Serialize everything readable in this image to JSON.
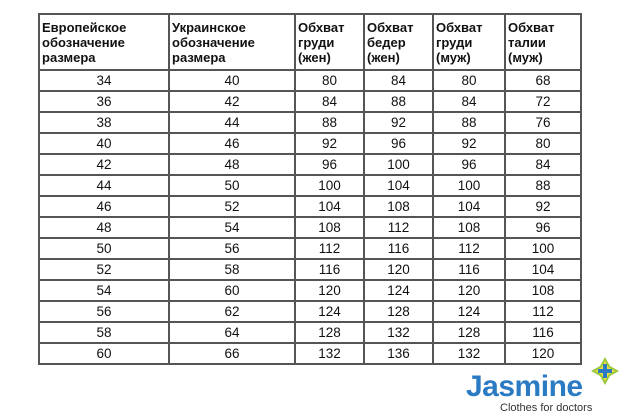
{
  "table": {
    "headers": [
      "Европейское обозначение размера",
      "Украинское обозначение размера",
      "Обхват груди (жен)",
      "Обхват бедер (жен)",
      "Обхват груди (муж)",
      "Обхват талии (муж)"
    ],
    "rows": [
      [
        "34",
        "40",
        "80",
        "84",
        "80",
        "68"
      ],
      [
        "36",
        "42",
        "84",
        "88",
        "84",
        "72"
      ],
      [
        "38",
        "44",
        "88",
        "92",
        "88",
        "76"
      ],
      [
        "40",
        "46",
        "92",
        "96",
        "92",
        "80"
      ],
      [
        "42",
        "48",
        "96",
        "100",
        "96",
        "84"
      ],
      [
        "44",
        "50",
        "100",
        "104",
        "100",
        "88"
      ],
      [
        "46",
        "52",
        "104",
        "108",
        "104",
        "92"
      ],
      [
        "48",
        "54",
        "108",
        "112",
        "108",
        "96"
      ],
      [
        "50",
        "56",
        "112",
        "116",
        "112",
        "100"
      ],
      [
        "52",
        "58",
        "116",
        "120",
        "116",
        "104"
      ],
      [
        "54",
        "60",
        "120",
        "124",
        "120",
        "108"
      ],
      [
        "56",
        "62",
        "124",
        "128",
        "124",
        "112"
      ],
      [
        "58",
        "64",
        "128",
        "132",
        "128",
        "116"
      ],
      [
        "60",
        "66",
        "132",
        "136",
        "132",
        "120"
      ]
    ]
  },
  "logo": {
    "brand": "Jasmine",
    "tagline": "Clothes for doctors",
    "brand_color": "#2b7ac4",
    "icon": "flower-cross-icon"
  }
}
